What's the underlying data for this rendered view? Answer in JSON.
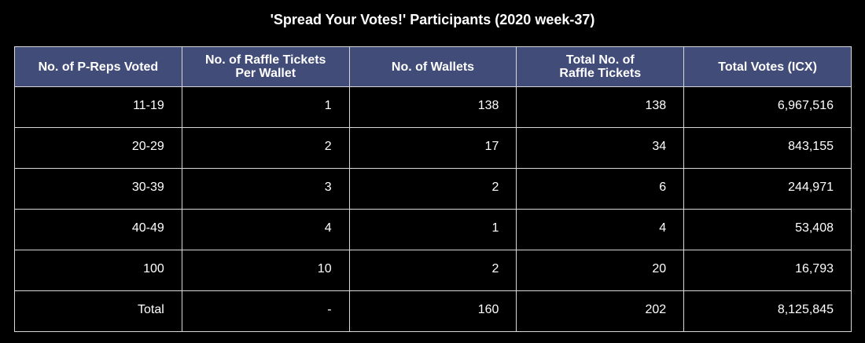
{
  "chart_data": {
    "type": "table",
    "title": "'Spread Your Votes!' Participants (2020 week-37)",
    "columns": [
      "No. of P-Reps Voted",
      "No. of Raffle Tickets\nPer Wallet",
      "No. of Wallets",
      "Total No. of\nRaffle Tickets",
      "Total Votes (ICX)"
    ],
    "rows": [
      [
        "11-19",
        "1",
        "138",
        "138",
        "6,967,516"
      ],
      [
        "20-29",
        "2",
        "17",
        "34",
        "843,155"
      ],
      [
        "30-39",
        "3",
        "2",
        "6",
        "244,971"
      ],
      [
        "40-49",
        "4",
        "1",
        "4",
        "53,408"
      ],
      [
        "100",
        "10",
        "2",
        "20",
        "16,793"
      ],
      [
        "Total",
        "-",
        "160",
        "202",
        "8,125,845"
      ]
    ],
    "colors": {
      "header_bg": "#424c78",
      "cell_bg": "#000000",
      "border": "#d9d9d9",
      "text": "#ffffff"
    }
  }
}
